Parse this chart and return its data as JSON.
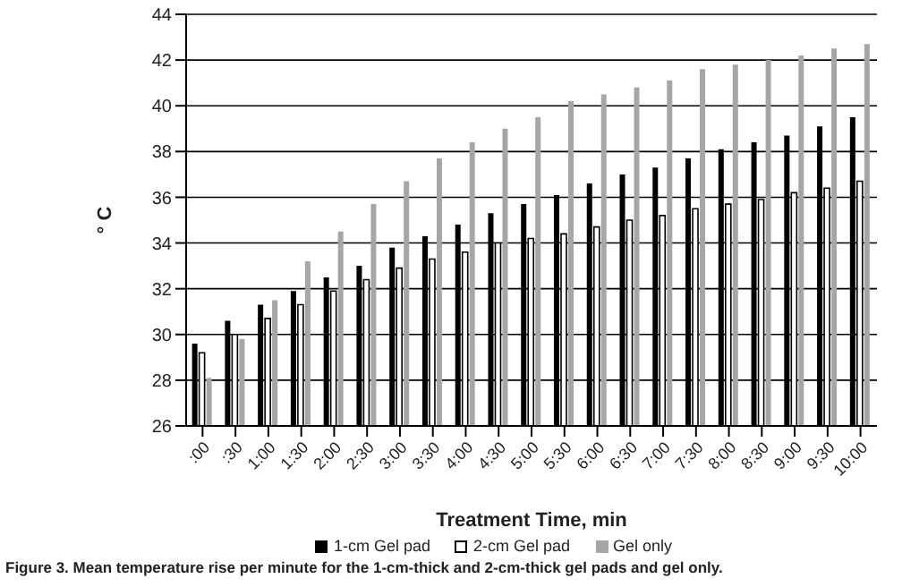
{
  "chart_data": {
    "type": "bar",
    "xlabel": "Treatment Time, min",
    "ylabel": "° C",
    "annotations": [
      "Figure 3. Mean temperature rise per minute for the 1-cm-thick and 2-cm-thick gel pads and gel only."
    ],
    "categories": [
      ":00",
      ":30",
      "1:00",
      "1:30",
      "2:00",
      "2:30",
      "3:00",
      "3:30",
      "4:00",
      "4:30",
      "5:00",
      "5:30",
      "6:00",
      "6:30",
      "7:00",
      "7:30",
      "8:00",
      "8:30",
      "9:00",
      "9:30",
      "10:00"
    ],
    "series": [
      {
        "name": "1-cm Gel pad",
        "color": "#000000",
        "values": [
          29.6,
          30.6,
          31.3,
          31.9,
          32.5,
          33.0,
          33.8,
          34.3,
          34.8,
          35.3,
          35.7,
          36.1,
          36.6,
          37.0,
          37.3,
          37.7,
          38.1,
          38.4,
          38.7,
          39.1,
          39.5
        ]
      },
      {
        "name": "2-cm Gel pad",
        "color": "#ffffff",
        "values": [
          29.2,
          30.0,
          30.7,
          31.3,
          31.9,
          32.4,
          32.9,
          33.3,
          33.6,
          34.0,
          34.2,
          34.4,
          34.7,
          35.0,
          35.2,
          35.5,
          35.7,
          35.9,
          36.2,
          36.4,
          36.7
        ]
      },
      {
        "name": "Gel only",
        "color": "#a6a6a6",
        "values": [
          28.1,
          29.8,
          31.5,
          33.2,
          34.5,
          35.7,
          36.7,
          37.7,
          38.4,
          39.0,
          39.5,
          40.2,
          40.5,
          40.8,
          41.1,
          41.6,
          41.8,
          42.0,
          42.2,
          42.5,
          42.7
        ]
      }
    ],
    "ylim": [
      26,
      44
    ],
    "yticks": [
      26,
      28,
      30,
      32,
      34,
      36,
      38,
      40,
      42,
      44
    ],
    "grid": "y",
    "legend": "bottom"
  }
}
